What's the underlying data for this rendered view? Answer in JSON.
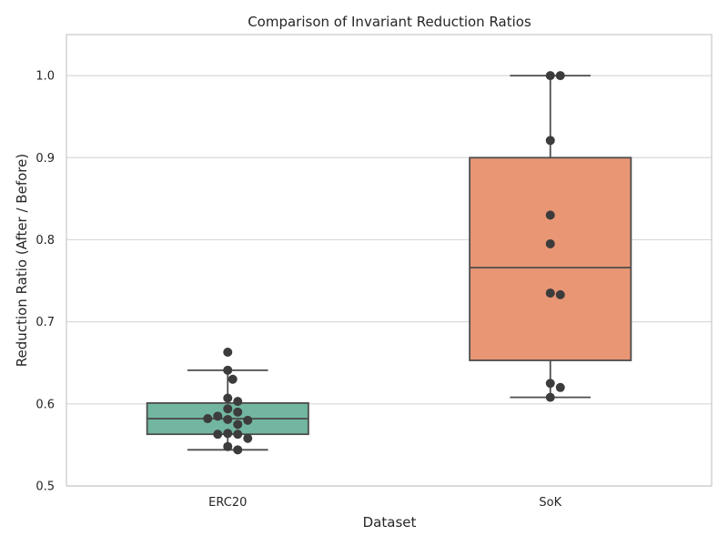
{
  "chart_data": {
    "type": "box",
    "title": "Comparison of Invariant Reduction Ratios",
    "xlabel": "Dataset",
    "ylabel": "Reduction Ratio (After / Before)",
    "ylim": [
      0.5,
      1.05
    ],
    "yticks": [
      "0.5",
      "0.6",
      "0.7",
      "0.8",
      "0.9",
      "1.0"
    ],
    "grid": "horizontal",
    "categories": [
      "ERC20",
      "SoK"
    ],
    "boxes": [
      {
        "name": "ERC20",
        "color": "#72b6a1",
        "whisker_low": 0.544,
        "q1": 0.563,
        "median": 0.582,
        "q3": 0.601,
        "whisker_high": 0.641,
        "points": [
          0.663,
          0.641,
          0.63,
          0.607,
          0.603,
          0.594,
          0.59,
          0.585,
          0.581,
          0.58,
          0.582,
          0.575,
          0.564,
          0.563,
          0.563,
          0.558,
          0.548,
          0.544
        ]
      },
      {
        "name": "SoK",
        "color": "#e99675",
        "whisker_low": 0.608,
        "q1": 0.653,
        "median": 0.766,
        "q3": 0.9,
        "whisker_high": 1.0,
        "points": [
          1.0,
          1.0,
          0.921,
          0.83,
          0.795,
          0.735,
          0.733,
          0.625,
          0.62,
          0.608
        ]
      }
    ],
    "colors": {
      "box_edge": "#4d4d4d",
      "point": "#3c3c3c",
      "grid": "#d9d9d9",
      "frame": "#cccccc"
    }
  }
}
